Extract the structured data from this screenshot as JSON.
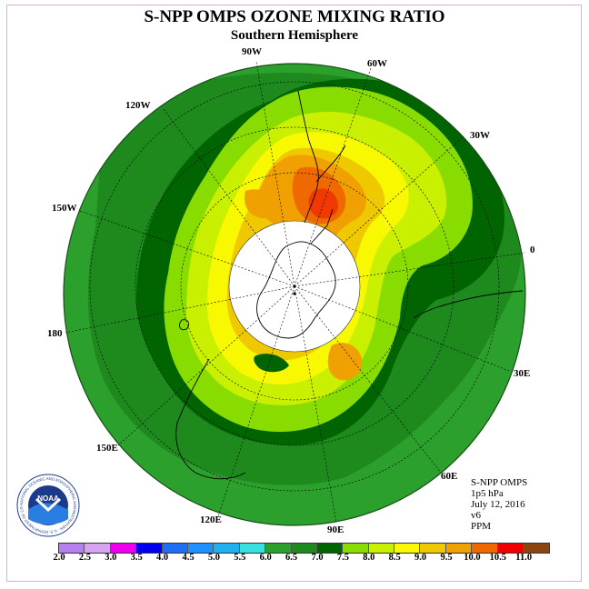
{
  "title": "S-NPP OMPS OZONE MIXING RATIO",
  "subtitle": "Southern Hemisphere",
  "logo_text": "NOAA",
  "logo_ring_text": "NATIONAL OCEANIC AND ATMOSPHERIC ADMINISTRATION · U.S. DEPARTMENT OF COMMERCE",
  "longitude_labels": [
    "90W",
    "60W",
    "120W",
    "30W",
    "150W",
    "0",
    "180",
    "30E",
    "150E",
    "60E",
    "120E",
    "90E"
  ],
  "info": {
    "instrument": "S-NPP OMPS",
    "level": "1p5 hPa",
    "date": "July 12, 2016",
    "version": "v6",
    "units": "PPM"
  },
  "colorbar": {
    "ticks": [
      "2.0",
      "2.5",
      "3.0",
      "3.5",
      "4.0",
      "4.5",
      "5.0",
      "5.5",
      "6.0",
      "6.5",
      "7.0",
      "7.5",
      "8.0",
      "8.5",
      "9.0",
      "9.5",
      "10.0",
      "10.5",
      "11.0"
    ],
    "colors": [
      "#b77ff0",
      "#d7a5f0",
      "#ee00ee",
      "#0000ee",
      "#1f6ff5",
      "#1e90ff",
      "#1eb0f0",
      "#38e0e0",
      "#2ca02c",
      "#1e8a1e",
      "#006400",
      "#88dc00",
      "#c8f000",
      "#f8f800",
      "#f0c800",
      "#f0a000",
      "#f06800",
      "#f00000",
      "#8b4513"
    ]
  }
}
